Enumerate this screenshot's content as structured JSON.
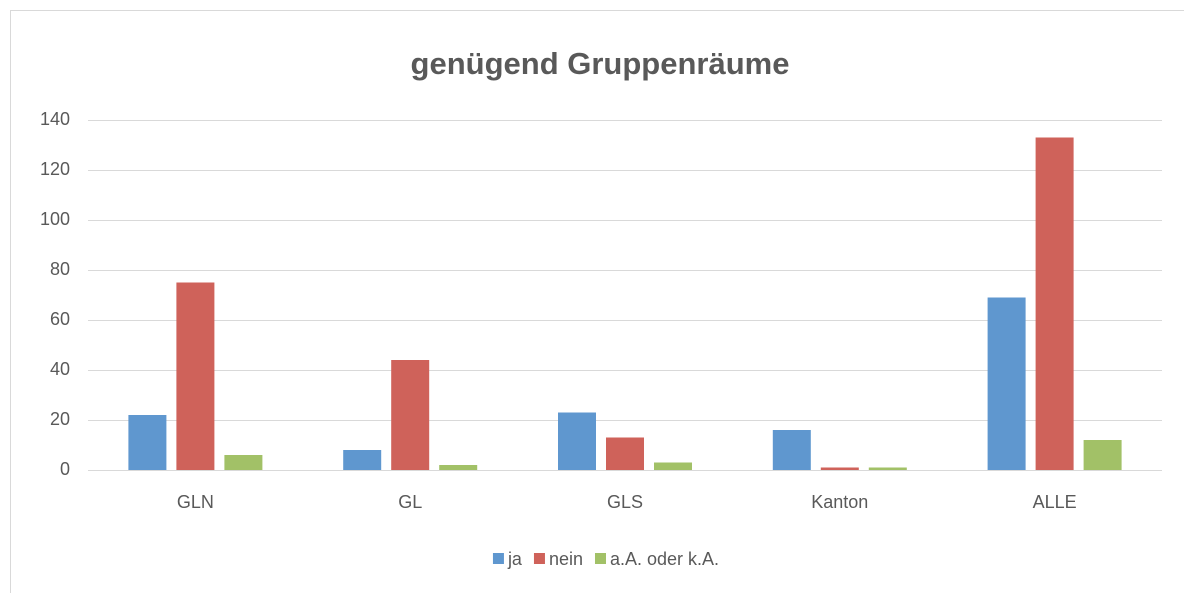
{
  "chart_data": {
    "type": "bar",
    "title": "genügend Gruppenräume",
    "categories": [
      "GLN",
      "GL",
      "GLS",
      "Kanton",
      "ALLE"
    ],
    "series": [
      {
        "name": "ja",
        "color": "#5f97cf",
        "values": [
          22,
          8,
          23,
          16,
          69
        ]
      },
      {
        "name": "nein",
        "color": "#cf625a",
        "values": [
          75,
          44,
          13,
          1,
          133
        ]
      },
      {
        "name": "a.A. oder k.A.",
        "color": "#a2c167",
        "values": [
          6,
          2,
          3,
          1,
          12
        ]
      }
    ],
    "ylim": [
      0,
      140
    ],
    "yticks": [
      0,
      20,
      40,
      60,
      80,
      100,
      120,
      140
    ],
    "grid": true,
    "legend": "bottom"
  }
}
